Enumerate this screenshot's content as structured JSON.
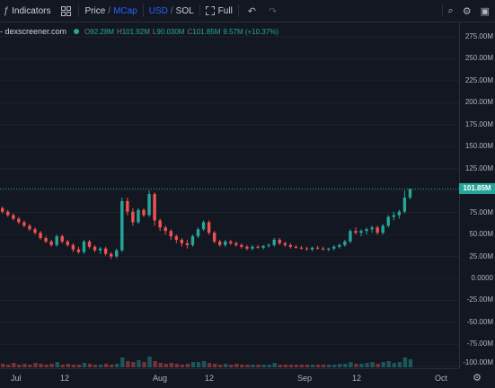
{
  "toolbar": {
    "indicators_label": "Indicators",
    "price_label": "Price",
    "mcap_label": "MCap",
    "currency_usd": "USD",
    "currency_sol": "SOL",
    "full_label": "Full",
    "slash": "/",
    "templates_icon": "grid-icon",
    "accent_color": "#2962ff"
  },
  "legend": {
    "source": "- dexscreener.com",
    "open_label": "O",
    "open": "92.28M",
    "high_label": "H",
    "high": "101.92M",
    "low_label": "L",
    "low": "90.030M",
    "close_label": "C",
    "close": "101.85M",
    "change": "9.57M (+10.37%)"
  },
  "price_axis": [
    "275.00M",
    "250.00M",
    "225.00M",
    "200.00M",
    "175.00M",
    "150.00M",
    "125.00M",
    "75.00M",
    "50.00M",
    "25.00M",
    "0.0000",
    "-25.00M",
    "-50.00M",
    "-75.00M",
    "-100.00M"
  ],
  "last_price_label": "101.85M",
  "time_axis": [
    "Jul",
    "12",
    "Aug",
    "12",
    "Sep",
    "12",
    "Oct"
  ],
  "colors": {
    "up": "#26a69a",
    "down": "#ef5350",
    "background": "#131722"
  },
  "chart_data": {
    "type": "candlestick",
    "ylim": [
      -100,
      285
    ],
    "ohlc": [
      [
        80,
        82,
        74,
        76
      ],
      [
        76,
        78,
        70,
        72
      ],
      [
        72,
        74,
        66,
        68
      ],
      [
        68,
        70,
        62,
        64
      ],
      [
        64,
        66,
        58,
        60
      ],
      [
        60,
        62,
        54,
        56
      ],
      [
        56,
        58,
        50,
        52
      ],
      [
        52,
        54,
        44,
        46
      ],
      [
        46,
        48,
        40,
        42
      ],
      [
        42,
        44,
        36,
        38
      ],
      [
        38,
        50,
        36,
        48
      ],
      [
        48,
        50,
        40,
        42
      ],
      [
        42,
        44,
        36,
        38
      ],
      [
        38,
        40,
        30,
        33
      ],
      [
        33,
        36,
        28,
        30
      ],
      [
        30,
        44,
        28,
        42
      ],
      [
        42,
        44,
        34,
        36
      ],
      [
        36,
        38,
        30,
        32
      ],
      [
        32,
        36,
        28,
        34
      ],
      [
        34,
        36,
        26,
        28
      ],
      [
        28,
        30,
        22,
        25
      ],
      [
        25,
        34,
        23,
        32
      ],
      [
        32,
        92,
        30,
        88
      ],
      [
        88,
        92,
        72,
        76
      ],
      [
        76,
        80,
        60,
        64
      ],
      [
        64,
        80,
        62,
        78
      ],
      [
        78,
        80,
        70,
        72
      ],
      [
        72,
        100,
        70,
        96
      ],
      [
        96,
        98,
        60,
        66
      ],
      [
        66,
        68,
        54,
        58
      ],
      [
        58,
        60,
        50,
        54
      ],
      [
        54,
        56,
        44,
        48
      ],
      [
        48,
        50,
        40,
        44
      ],
      [
        44,
        46,
        36,
        40
      ],
      [
        40,
        44,
        34,
        38
      ],
      [
        38,
        50,
        36,
        48
      ],
      [
        48,
        58,
        46,
        56
      ],
      [
        56,
        66,
        54,
        64
      ],
      [
        64,
        66,
        50,
        52
      ],
      [
        52,
        54,
        40,
        42
      ],
      [
        42,
        44,
        36,
        38
      ],
      [
        38,
        44,
        36,
        42
      ],
      [
        42,
        44,
        38,
        40
      ],
      [
        40,
        42,
        36,
        38
      ],
      [
        38,
        40,
        34,
        36
      ],
      [
        36,
        38,
        32,
        34
      ],
      [
        34,
        38,
        32,
        36
      ],
      [
        36,
        38,
        34,
        35
      ],
      [
        35,
        38,
        33,
        37
      ],
      [
        37,
        40,
        35,
        38
      ],
      [
        38,
        46,
        36,
        44
      ],
      [
        44,
        46,
        38,
        40
      ],
      [
        40,
        42,
        36,
        38
      ],
      [
        38,
        40,
        34,
        36
      ],
      [
        36,
        38,
        34,
        35
      ],
      [
        35,
        37,
        33,
        34
      ],
      [
        34,
        36,
        32,
        33
      ],
      [
        33,
        36,
        31,
        35
      ],
      [
        35,
        37,
        33,
        34
      ],
      [
        34,
        36,
        32,
        33
      ],
      [
        33,
        35,
        31,
        34
      ],
      [
        34,
        38,
        32,
        36
      ],
      [
        36,
        40,
        34,
        38
      ],
      [
        38,
        44,
        36,
        42
      ],
      [
        42,
        56,
        40,
        54
      ],
      [
        54,
        58,
        50,
        52
      ],
      [
        52,
        56,
        48,
        54
      ],
      [
        54,
        58,
        50,
        56
      ],
      [
        56,
        60,
        52,
        58
      ],
      [
        58,
        60,
        50,
        52
      ],
      [
        52,
        62,
        50,
        60
      ],
      [
        60,
        72,
        58,
        70
      ],
      [
        70,
        76,
        66,
        72
      ],
      [
        72,
        78,
        68,
        76
      ],
      [
        76,
        100,
        74,
        92
      ],
      [
        92,
        102,
        90,
        102
      ]
    ],
    "volume": [
      4,
      3,
      5,
      3,
      4,
      3,
      5,
      4,
      3,
      4,
      6,
      3,
      4,
      3,
      3,
      5,
      4,
      3,
      3,
      4,
      3,
      4,
      11,
      7,
      6,
      8,
      6,
      12,
      7,
      5,
      4,
      5,
      4,
      3,
      4,
      6,
      6,
      7,
      5,
      4,
      3,
      4,
      3,
      4,
      3,
      3,
      3,
      3,
      3,
      3,
      5,
      3,
      3,
      3,
      3,
      3,
      3,
      3,
      3,
      3,
      3,
      3,
      4,
      4,
      6,
      4,
      4,
      5,
      6,
      4,
      6,
      7,
      5,
      6,
      11,
      9
    ]
  }
}
